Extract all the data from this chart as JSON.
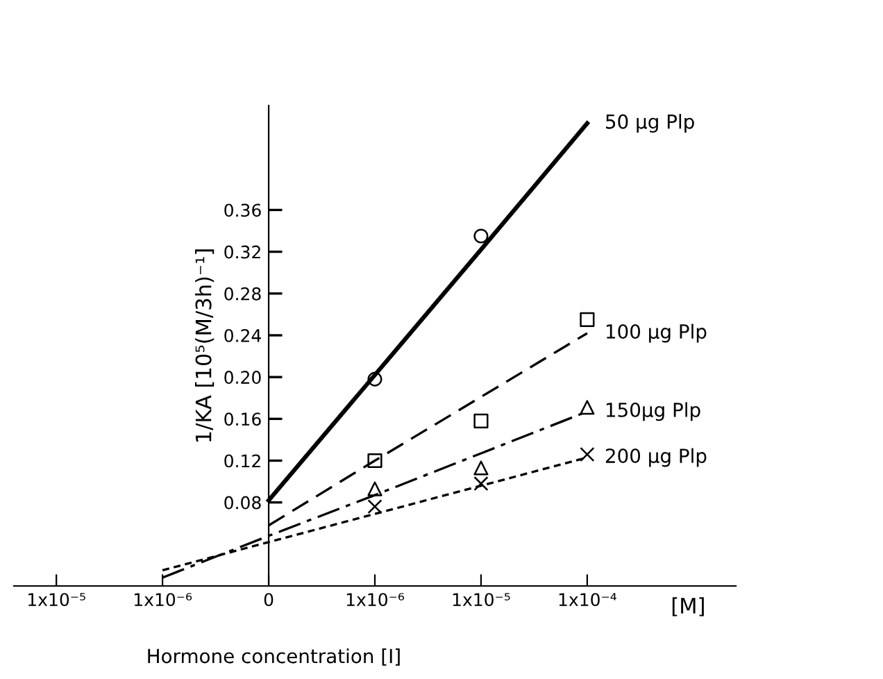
{
  "chart_data": {
    "type": "line",
    "xlabel": "Hormone concentration [I]",
    "ylabel": "1/KA [10⁵(M/3h)⁻¹]",
    "annotations": [
      "[M]"
    ],
    "categories": [
      "1x10⁻⁵",
      "1x10⁻⁶",
      "0",
      "1x10⁻⁶",
      "1x10⁻⁵",
      "1x10⁻⁴"
    ],
    "ylim": [
      0,
      0.46
    ],
    "yticks": [
      {
        "value": 0.08,
        "label": "0.08"
      },
      {
        "value": 0.12,
        "label": "0.12"
      },
      {
        "value": 0.16,
        "label": "0.16"
      },
      {
        "value": 0.2,
        "label": "0.20"
      },
      {
        "value": 0.24,
        "label": "0.24"
      },
      {
        "value": 0.28,
        "label": "0.28"
      },
      {
        "value": 0.32,
        "label": "0.32"
      },
      {
        "value": 0.36,
        "label": "0.36"
      }
    ],
    "grid": false,
    "legend": false,
    "series": [
      {
        "name": "50 µg Plp",
        "type": "line",
        "color": "#000000",
        "line_style": "solid",
        "marker": "none",
        "values": [
          null,
          null,
          0.082,
          0.202,
          0.322,
          0.443
        ]
      },
      {
        "name": "100 µg Plp",
        "type": "line",
        "color": "#000000",
        "line_style": "dashed",
        "marker": "none",
        "values": [
          null,
          null,
          0.058,
          0.12,
          0.181,
          0.242
        ]
      },
      {
        "name": "150µg Plp",
        "type": "line",
        "color": "#000000",
        "line_style": "dashdot",
        "marker": "none",
        "values": [
          null,
          0.008,
          0.048,
          0.087,
          0.127,
          0.167
        ]
      },
      {
        "name": "200 µg Plp",
        "type": "line",
        "color": "#000000",
        "line_style": "dotted",
        "marker": "none",
        "values": [
          null,
          0.015,
          0.042,
          0.069,
          0.096,
          0.123
        ]
      },
      {
        "type": "scatter",
        "color": "#000000",
        "marker": "circle",
        "values": [
          null,
          null,
          null,
          0.198,
          0.335,
          null
        ]
      },
      {
        "type": "scatter",
        "color": "#000000",
        "marker": "square",
        "values": [
          null,
          null,
          null,
          0.12,
          0.158,
          0.255
        ]
      },
      {
        "type": "scatter",
        "color": "#000000",
        "marker": "triangle",
        "values": [
          null,
          null,
          null,
          0.093,
          0.113,
          0.171
        ]
      },
      {
        "type": "scatter",
        "color": "#000000",
        "marker": "cross",
        "values": [
          null,
          null,
          null,
          0.076,
          0.098,
          0.126
        ]
      }
    ]
  }
}
